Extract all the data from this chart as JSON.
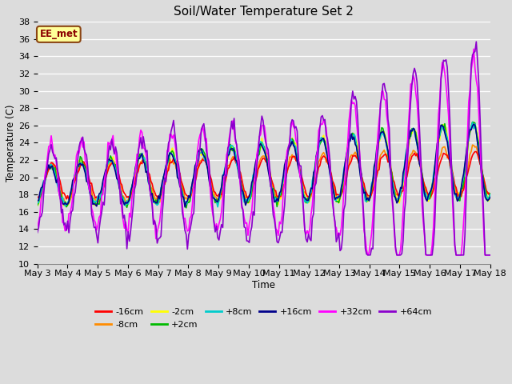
{
  "title": "Soil/Water Temperature Set 2",
  "xlabel": "Time",
  "ylabel": "Temperature (C)",
  "ylim": [
    10,
    38
  ],
  "background_color": "#dcdcdc",
  "plot_bg_color": "#dcdcdc",
  "annotation_text": "EE_met",
  "annotation_bg": "#ffff99",
  "annotation_border": "#8b4513",
  "annotation_text_color": "#8b0000",
  "x_tick_labels": [
    "May 3",
    "May 4",
    "May 5",
    "May 6",
    "May 7",
    "May 8",
    "May 9",
    "May 10",
    "May 11",
    "May 12",
    "May 13",
    "May 14",
    "May 15",
    "May 16",
    "May 17",
    "May 18"
  ],
  "series": [
    {
      "label": "-16cm",
      "color": "#ff0000",
      "linewidth": 1.2,
      "zorder": 5
    },
    {
      "label": "-8cm",
      "color": "#ff8c00",
      "linewidth": 1.2,
      "zorder": 4
    },
    {
      "label": "-2cm",
      "color": "#ffff00",
      "linewidth": 1.2,
      "zorder": 3
    },
    {
      "label": "+2cm",
      "color": "#00bb00",
      "linewidth": 1.2,
      "zorder": 6
    },
    {
      "label": "+8cm",
      "color": "#00cccc",
      "linewidth": 1.2,
      "zorder": 6
    },
    {
      "label": "+16cm",
      "color": "#00008b",
      "linewidth": 1.2,
      "zorder": 6
    },
    {
      "label": "+32cm",
      "color": "#ff00ff",
      "linewidth": 1.2,
      "zorder": 7
    },
    {
      "label": "+64cm",
      "color": "#8b00cc",
      "linewidth": 1.2,
      "zorder": 8
    }
  ],
  "legend_fontsize": 8,
  "title_fontsize": 11,
  "tick_fontsize": 8
}
